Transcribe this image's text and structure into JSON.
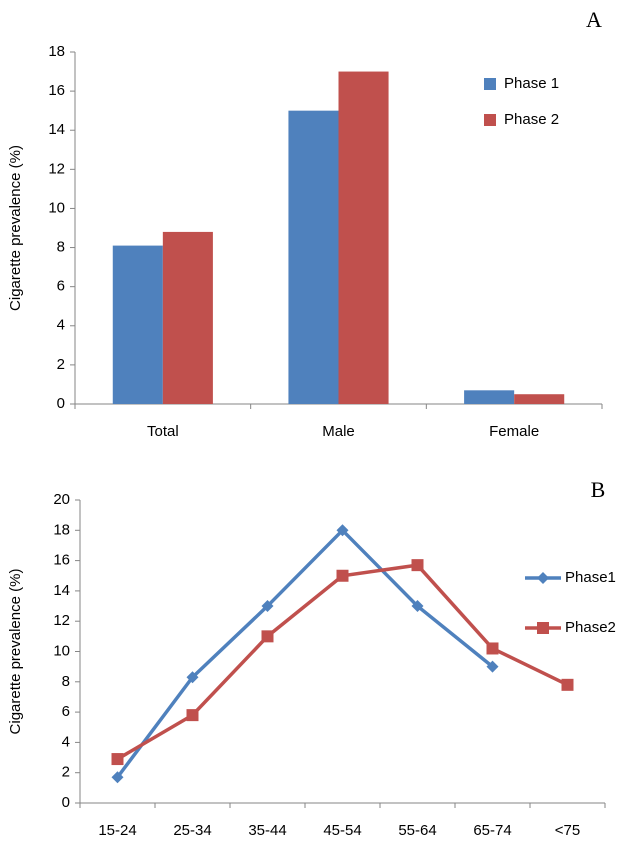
{
  "chart_data": [
    {
      "type": "bar",
      "label": "A",
      "y_label": "Cigarette prevalence (%)",
      "categories": [
        "Total",
        "Male",
        "Female"
      ],
      "series": [
        {
          "name": "Phase 1",
          "color": "#4f81bd",
          "values": [
            8.1,
            15,
            0.7
          ]
        },
        {
          "name": "Phase 2",
          "color": "#c0504d",
          "values": [
            8.8,
            17,
            0.5
          ]
        }
      ],
      "ylim": [
        0,
        18
      ],
      "yticks": [
        0,
        2,
        4,
        6,
        8,
        10,
        12,
        14,
        16,
        18
      ],
      "grid": false,
      "legend": "right"
    },
    {
      "type": "line",
      "label": "B",
      "y_label": "Cigarette prevalence (%)",
      "categories": [
        "15-24",
        "25-34",
        "35-44",
        "45-54",
        "55-64",
        "65-74",
        "<75"
      ],
      "series": [
        {
          "name": "Phase1",
          "color": "#4f81bd",
          "marker": "diamond",
          "values": [
            1.7,
            8.3,
            13,
            18,
            13,
            9,
            null
          ]
        },
        {
          "name": "Phase2",
          "color": "#c0504d",
          "marker": "square",
          "values": [
            2.9,
            5.8,
            11,
            15,
            15.7,
            10.2,
            7.8
          ]
        }
      ],
      "ylim": [
        0,
        20
      ],
      "yticks": [
        0,
        2,
        4,
        6,
        8,
        10,
        12,
        14,
        16,
        18,
        20
      ],
      "grid": false,
      "legend": "right"
    }
  ]
}
